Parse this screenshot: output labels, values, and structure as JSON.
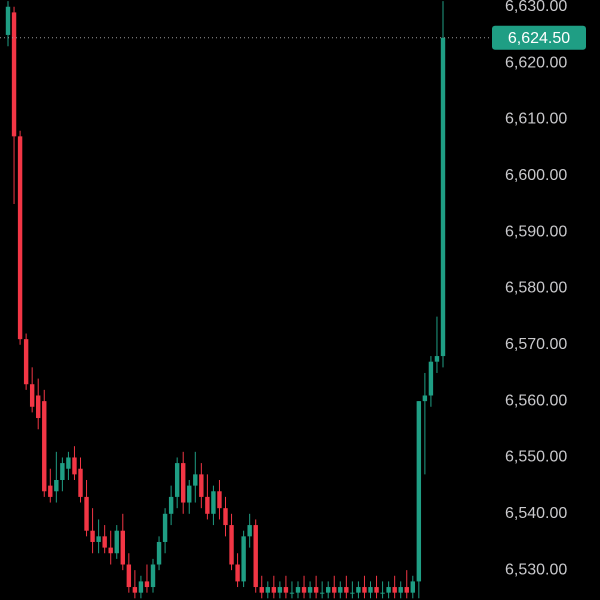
{
  "chart_data": {
    "type": "candlestick",
    "up_color": "#1f9e84",
    "down_color": "#f23645",
    "ylim": [
      6524.7,
      6631.2
    ],
    "yticks": [
      {
        "value": 6530,
        "label": "6,530.00"
      },
      {
        "value": 6540,
        "label": "6,540.00"
      },
      {
        "value": 6550,
        "label": "6,550.00"
      },
      {
        "value": 6560,
        "label": "6,560.00"
      },
      {
        "value": 6570,
        "label": "6,570.00"
      },
      {
        "value": 6580,
        "label": "6,580.00"
      },
      {
        "value": 6590,
        "label": "6,590.00"
      },
      {
        "value": 6600,
        "label": "6,600.00"
      },
      {
        "value": 6610,
        "label": "6,610.00"
      },
      {
        "value": 6620,
        "label": "6,620.00"
      },
      {
        "value": 6630,
        "label": "6,630.00"
      }
    ],
    "last_price": {
      "value": 6624.5,
      "label": "6,624.50"
    },
    "open": [
      6625,
      6629,
      6607,
      6571,
      6563,
      6561,
      6560,
      6545,
      6544,
      6546,
      6548,
      6550,
      6548,
      6543,
      6537,
      6535,
      6536,
      6534,
      6533,
      6537,
      6531,
      6527,
      6526,
      6528,
      6527,
      6531,
      6535,
      6540,
      6543,
      6549,
      6542,
      6545,
      6547,
      6543,
      6540,
      6544,
      6541,
      6538,
      6531,
      6528,
      6536,
      6538,
      6527,
      6526,
      6527,
      6526,
      6527,
      6526,
      6526,
      6527,
      6526,
      6527,
      6526,
      6526,
      6527,
      6526,
      6527,
      6526,
      6526,
      6527,
      6526,
      6527,
      6526,
      6526,
      6527,
      6526,
      6527,
      6526,
      6528,
      6560,
      6561,
      6567,
      6568
    ],
    "high": [
      6631,
      6630,
      6608,
      6572,
      6566,
      6564,
      6562,
      6548,
      6551,
      6550,
      6551,
      6552,
      6550,
      6546,
      6541,
      6539,
      6538,
      6537,
      6538,
      6540,
      6533,
      6530,
      6529,
      6531,
      6532,
      6536,
      6541,
      6545,
      6550,
      6551,
      6546,
      6551,
      6549,
      6547,
      6545,
      6546,
      6543,
      6540,
      6533,
      6537,
      6540,
      6539,
      6529,
      6528,
      6529,
      6528,
      6529,
      6528,
      6528,
      6529,
      6528,
      6529,
      6528,
      6528,
      6529,
      6528,
      6529,
      6528,
      6528,
      6529,
      6528,
      6529,
      6528,
      6528,
      6529,
      6528,
      6530,
      6529,
      6560,
      6565,
      6568,
      6575,
      6631
    ],
    "low": [
      6623,
      6595,
      6570,
      6562,
      6558,
      6555,
      6543,
      6542,
      6542,
      6544,
      6546,
      6546,
      6542,
      6536,
      6533,
      6533,
      6533,
      6531,
      6532,
      6530,
      6526,
      6525,
      6525,
      6526,
      6526,
      6530,
      6533,
      6538,
      6541,
      6540,
      6540,
      6542,
      6541,
      6539,
      6538,
      6539,
      6536,
      6530,
      6527,
      6527,
      6534,
      6526,
      6525,
      6525,
      6525,
      6525,
      6525,
      6525,
      6525,
      6525,
      6525,
      6525,
      6525,
      6525,
      6525,
      6525,
      6525,
      6525,
      6525,
      6525,
      6525,
      6525,
      6525,
      6525,
      6525,
      6525,
      6525,
      6525,
      6525,
      6547,
      6559,
      6565,
      6566
    ],
    "close": [
      6630,
      6607,
      6571,
      6563,
      6559,
      6557,
      6544,
      6543,
      6546,
      6549,
      6550,
      6547,
      6543,
      6537,
      6535,
      6536,
      6534,
      6533,
      6537,
      6531,
      6527,
      6526,
      6528,
      6527,
      6531,
      6535,
      6540,
      6543,
      6549,
      6542,
      6545,
      6547,
      6543,
      6540,
      6544,
      6541,
      6538,
      6531,
      6528,
      6536,
      6538,
      6527,
      6526,
      6527,
      6526,
      6527,
      6526,
      6526,
      6527,
      6526,
      6527,
      6526,
      6526,
      6527,
      6526,
      6527,
      6526,
      6526,
      6527,
      6526,
      6527,
      6526,
      6526,
      6527,
      6526,
      6527,
      6526,
      6528,
      6560,
      6561,
      6567,
      6568,
      6624.5
    ]
  }
}
